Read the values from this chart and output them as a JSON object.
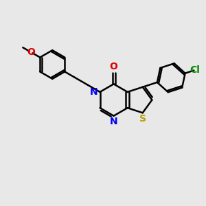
{
  "bg_color": "#e8e8e8",
  "bond_color": "#000000",
  "bond_width": 1.8,
  "S_color": "#b8a000",
  "N_color": "#0000ee",
  "O_color": "#dd0000",
  "Cl_color": "#008800",
  "figsize": [
    3.0,
    3.0
  ],
  "dpi": 100,
  "xlim": [
    0,
    10
  ],
  "ylim": [
    0,
    10
  ]
}
